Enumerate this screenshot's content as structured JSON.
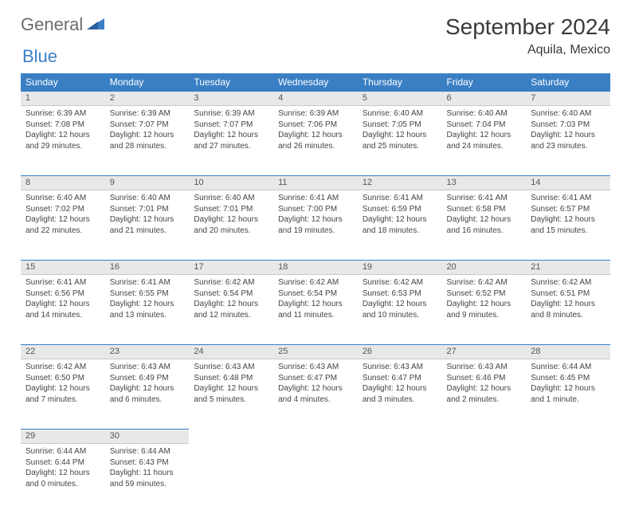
{
  "brand": {
    "part1": "General",
    "part2": "Blue"
  },
  "title": "September 2024",
  "location": "Aquila, Mexico",
  "colors": {
    "header_bg": "#3a7fc4",
    "header_fg": "#ffffff",
    "daynum_bg": "#e8e8e8",
    "row_border": "#3a7fc4",
    "text": "#444444",
    "logo_gray": "#6b6b6b",
    "logo_blue": "#3a7fc4"
  },
  "weekdays": [
    "Sunday",
    "Monday",
    "Tuesday",
    "Wednesday",
    "Thursday",
    "Friday",
    "Saturday"
  ],
  "days": [
    {
      "n": 1,
      "sunrise": "6:39 AM",
      "sunset": "7:08 PM",
      "dl": "12 hours and 29 minutes."
    },
    {
      "n": 2,
      "sunrise": "6:39 AM",
      "sunset": "7:07 PM",
      "dl": "12 hours and 28 minutes."
    },
    {
      "n": 3,
      "sunrise": "6:39 AM",
      "sunset": "7:07 PM",
      "dl": "12 hours and 27 minutes."
    },
    {
      "n": 4,
      "sunrise": "6:39 AM",
      "sunset": "7:06 PM",
      "dl": "12 hours and 26 minutes."
    },
    {
      "n": 5,
      "sunrise": "6:40 AM",
      "sunset": "7:05 PM",
      "dl": "12 hours and 25 minutes."
    },
    {
      "n": 6,
      "sunrise": "6:40 AM",
      "sunset": "7:04 PM",
      "dl": "12 hours and 24 minutes."
    },
    {
      "n": 7,
      "sunrise": "6:40 AM",
      "sunset": "7:03 PM",
      "dl": "12 hours and 23 minutes."
    },
    {
      "n": 8,
      "sunrise": "6:40 AM",
      "sunset": "7:02 PM",
      "dl": "12 hours and 22 minutes."
    },
    {
      "n": 9,
      "sunrise": "6:40 AM",
      "sunset": "7:01 PM",
      "dl": "12 hours and 21 minutes."
    },
    {
      "n": 10,
      "sunrise": "6:40 AM",
      "sunset": "7:01 PM",
      "dl": "12 hours and 20 minutes."
    },
    {
      "n": 11,
      "sunrise": "6:41 AM",
      "sunset": "7:00 PM",
      "dl": "12 hours and 19 minutes."
    },
    {
      "n": 12,
      "sunrise": "6:41 AM",
      "sunset": "6:59 PM",
      "dl": "12 hours and 18 minutes."
    },
    {
      "n": 13,
      "sunrise": "6:41 AM",
      "sunset": "6:58 PM",
      "dl": "12 hours and 16 minutes."
    },
    {
      "n": 14,
      "sunrise": "6:41 AM",
      "sunset": "6:57 PM",
      "dl": "12 hours and 15 minutes."
    },
    {
      "n": 15,
      "sunrise": "6:41 AM",
      "sunset": "6:56 PM",
      "dl": "12 hours and 14 minutes."
    },
    {
      "n": 16,
      "sunrise": "6:41 AM",
      "sunset": "6:55 PM",
      "dl": "12 hours and 13 minutes."
    },
    {
      "n": 17,
      "sunrise": "6:42 AM",
      "sunset": "6:54 PM",
      "dl": "12 hours and 12 minutes."
    },
    {
      "n": 18,
      "sunrise": "6:42 AM",
      "sunset": "6:54 PM",
      "dl": "12 hours and 11 minutes."
    },
    {
      "n": 19,
      "sunrise": "6:42 AM",
      "sunset": "6:53 PM",
      "dl": "12 hours and 10 minutes."
    },
    {
      "n": 20,
      "sunrise": "6:42 AM",
      "sunset": "6:52 PM",
      "dl": "12 hours and 9 minutes."
    },
    {
      "n": 21,
      "sunrise": "6:42 AM",
      "sunset": "6:51 PM",
      "dl": "12 hours and 8 minutes."
    },
    {
      "n": 22,
      "sunrise": "6:42 AM",
      "sunset": "6:50 PM",
      "dl": "12 hours and 7 minutes."
    },
    {
      "n": 23,
      "sunrise": "6:43 AM",
      "sunset": "6:49 PM",
      "dl": "12 hours and 6 minutes."
    },
    {
      "n": 24,
      "sunrise": "6:43 AM",
      "sunset": "6:48 PM",
      "dl": "12 hours and 5 minutes."
    },
    {
      "n": 25,
      "sunrise": "6:43 AM",
      "sunset": "6:47 PM",
      "dl": "12 hours and 4 minutes."
    },
    {
      "n": 26,
      "sunrise": "6:43 AM",
      "sunset": "6:47 PM",
      "dl": "12 hours and 3 minutes."
    },
    {
      "n": 27,
      "sunrise": "6:43 AM",
      "sunset": "6:46 PM",
      "dl": "12 hours and 2 minutes."
    },
    {
      "n": 28,
      "sunrise": "6:44 AM",
      "sunset": "6:45 PM",
      "dl": "12 hours and 1 minute."
    },
    {
      "n": 29,
      "sunrise": "6:44 AM",
      "sunset": "6:44 PM",
      "dl": "12 hours and 0 minutes."
    },
    {
      "n": 30,
      "sunrise": "6:44 AM",
      "sunset": "6:43 PM",
      "dl": "11 hours and 59 minutes."
    }
  ],
  "labels": {
    "sunrise": "Sunrise:",
    "sunset": "Sunset:",
    "daylight": "Daylight:"
  }
}
